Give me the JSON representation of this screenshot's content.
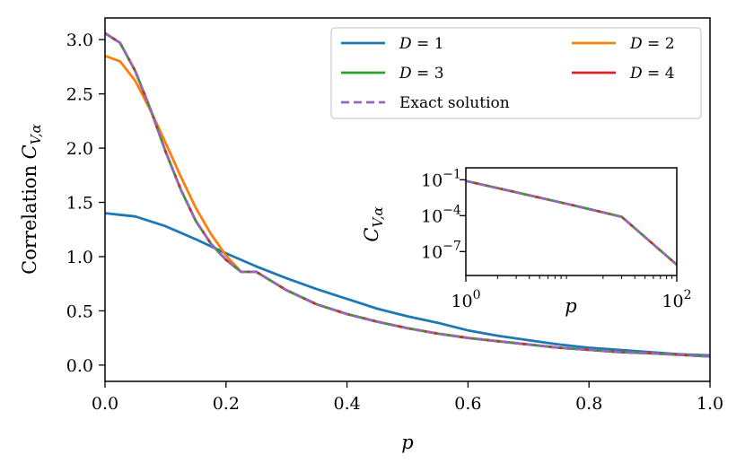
{
  "chart_data": [
    {
      "type": "line",
      "xlabel": "p",
      "ylabel": "Correlation C_{V,α}",
      "ylabel_text": "Correlation ",
      "ylabel_var": "C",
      "ylabel_sub": "V,α",
      "xlim": [
        0.0,
        1.0
      ],
      "ylim": [
        -0.15,
        3.2
      ],
      "xticks": [
        "0.0",
        "0.2",
        "0.4",
        "0.6",
        "0.8",
        "1.0"
      ],
      "yticks": [
        "0.0",
        "0.5",
        "1.0",
        "1.5",
        "2.0",
        "2.5",
        "3.0"
      ],
      "grid": false,
      "legend_placement": "upper-right",
      "legend_columns": 2,
      "series": [
        {
          "name": "D = 1",
          "color": "#1f77b4",
          "style": "solid",
          "x": [
            0,
            0.05,
            0.1,
            0.15,
            0.2,
            0.25,
            0.3,
            0.35,
            0.4,
            0.45,
            0.5,
            0.55,
            0.6,
            0.65,
            0.7,
            0.75,
            0.8,
            0.85,
            0.9,
            0.95,
            1.0
          ],
          "y": [
            1.4,
            1.37,
            1.28,
            1.16,
            1.03,
            0.91,
            0.8,
            0.7,
            0.61,
            0.52,
            0.45,
            0.39,
            0.32,
            0.27,
            0.23,
            0.19,
            0.16,
            0.14,
            0.12,
            0.1,
            0.09
          ]
        },
        {
          "name": "D = 2",
          "color": "#ff7f0e",
          "style": "solid",
          "x": [
            0,
            0.025,
            0.05,
            0.075,
            0.1,
            0.125,
            0.15,
            0.175,
            0.2,
            0.225,
            0.25,
            0.3,
            0.35,
            0.4,
            0.45,
            0.5,
            0.55,
            0.6,
            0.65,
            0.7,
            0.75,
            0.8,
            0.85,
            0.9,
            0.95,
            1.0
          ],
          "y": [
            2.85,
            2.8,
            2.62,
            2.35,
            2.05,
            1.74,
            1.45,
            1.21,
            1.01,
            0.86,
            0.86,
            0.69,
            0.56,
            0.47,
            0.4,
            0.34,
            0.29,
            0.25,
            0.22,
            0.19,
            0.16,
            0.14,
            0.12,
            0.11,
            0.095,
            0.08
          ]
        },
        {
          "name": "D = 3",
          "color": "#2ca02c",
          "style": "solid",
          "x": [
            0,
            0.025,
            0.05,
            0.075,
            0.1,
            0.125,
            0.15,
            0.175,
            0.2,
            0.225,
            0.25,
            0.3,
            0.35,
            0.4,
            0.45,
            0.5,
            0.55,
            0.6,
            0.65,
            0.7,
            0.75,
            0.8,
            0.85,
            0.9,
            0.95,
            1.0
          ],
          "y": [
            3.06,
            2.97,
            2.71,
            2.36,
            1.97,
            1.62,
            1.33,
            1.12,
            0.97,
            0.86,
            0.86,
            0.69,
            0.56,
            0.47,
            0.4,
            0.34,
            0.29,
            0.25,
            0.22,
            0.19,
            0.16,
            0.14,
            0.12,
            0.11,
            0.095,
            0.08
          ]
        },
        {
          "name": "D = 4",
          "color": "#d62728",
          "style": "solid",
          "x": [
            0,
            0.025,
            0.05,
            0.075,
            0.1,
            0.125,
            0.15,
            0.175,
            0.2,
            0.225,
            0.25,
            0.3,
            0.35,
            0.4,
            0.45,
            0.5,
            0.55,
            0.6,
            0.65,
            0.7,
            0.75,
            0.8,
            0.85,
            0.9,
            0.95,
            1.0
          ],
          "y": [
            3.06,
            2.97,
            2.71,
            2.36,
            1.97,
            1.62,
            1.33,
            1.12,
            0.97,
            0.86,
            0.86,
            0.69,
            0.56,
            0.47,
            0.4,
            0.34,
            0.29,
            0.25,
            0.22,
            0.19,
            0.16,
            0.14,
            0.12,
            0.11,
            0.095,
            0.08
          ]
        },
        {
          "name": "Exact solution",
          "color": "#9467bd",
          "style": "dashed",
          "x": [
            0,
            0.025,
            0.05,
            0.075,
            0.1,
            0.125,
            0.15,
            0.175,
            0.2,
            0.225,
            0.25,
            0.3,
            0.35,
            0.4,
            0.45,
            0.5,
            0.55,
            0.6,
            0.65,
            0.7,
            0.75,
            0.8,
            0.85,
            0.9,
            0.95,
            1.0
          ],
          "y": [
            3.06,
            2.97,
            2.71,
            2.36,
            1.97,
            1.62,
            1.33,
            1.12,
            0.97,
            0.86,
            0.86,
            0.69,
            0.56,
            0.47,
            0.4,
            0.34,
            0.29,
            0.25,
            0.22,
            0.19,
            0.16,
            0.14,
            0.12,
            0.11,
            0.095,
            0.08
          ]
        }
      ]
    },
    {
      "type": "line",
      "role": "inset",
      "xlabel": "p",
      "ylabel_var": "C",
      "ylabel_sub": "V,α",
      "xscale": "log",
      "yscale": "log",
      "xlim": [
        1,
        100
      ],
      "ylim": [
        1e-09,
        1
      ],
      "xticks": [
        {
          "value": 1,
          "base": "10",
          "exp": "0"
        },
        {
          "value": 100,
          "base": "10",
          "exp": "2"
        }
      ],
      "yticks": [
        {
          "value": 0.1,
          "base": "10",
          "exp": "−1"
        },
        {
          "value": 0.0001,
          "base": "10",
          "exp": "−4"
        },
        {
          "value": 1e-07,
          "base": "10",
          "exp": "−7"
        }
      ],
      "series": [
        {
          "name": "D = 1",
          "color": "#1f77b4",
          "style": "solid",
          "x": [
            1,
            3,
            10,
            30,
            100
          ],
          "y": [
            0.08,
            0.009,
            0.0008,
            8e-05,
            8e-09
          ]
        },
        {
          "name": "D = 2",
          "color": "#ff7f0e",
          "style": "solid",
          "x": [
            1,
            3,
            10,
            30,
            100
          ],
          "y": [
            0.08,
            0.009,
            0.0008,
            8e-05,
            8e-09
          ]
        },
        {
          "name": "D = 3",
          "color": "#2ca02c",
          "style": "solid",
          "x": [
            1,
            3,
            10,
            30,
            100
          ],
          "y": [
            0.08,
            0.009,
            0.0008,
            8e-05,
            8e-09
          ]
        },
        {
          "name": "D = 4",
          "color": "#d62728",
          "style": "solid",
          "x": [
            1,
            3,
            10,
            30,
            100
          ],
          "y": [
            0.08,
            0.009,
            0.0008,
            8e-05,
            8e-09
          ]
        },
        {
          "name": "Exact solution",
          "color": "#9467bd",
          "style": "dashed",
          "x": [
            1,
            3,
            10,
            30,
            100
          ],
          "y": [
            0.08,
            0.009,
            0.0008,
            8e-05,
            8e-09
          ]
        }
      ]
    }
  ]
}
